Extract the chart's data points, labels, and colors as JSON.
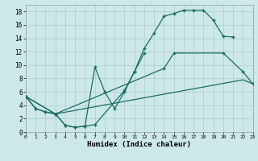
{
  "xlabel": "Humidex (Indice chaleur)",
  "bg_color": "#cde8e8",
  "grid_color": "#aecccc",
  "line_color": "#1a6e64",
  "xlim": [
    0,
    23
  ],
  "ylim": [
    0,
    19
  ],
  "xticks": [
    0,
    1,
    2,
    3,
    4,
    5,
    6,
    7,
    8,
    9,
    10,
    11,
    12,
    13,
    14,
    15,
    16,
    17,
    18,
    19,
    20,
    21,
    22,
    23
  ],
  "yticks": [
    0,
    2,
    4,
    6,
    8,
    10,
    12,
    14,
    16,
    18
  ],
  "curve1_x": [
    0,
    1,
    2,
    3,
    4,
    5,
    6,
    7,
    10,
    11,
    12,
    13,
    14,
    15,
    16,
    17,
    18,
    19,
    20,
    21
  ],
  "curve1_y": [
    5.3,
    3.5,
    3.0,
    2.7,
    1.0,
    0.7,
    0.9,
    1.1,
    6.2,
    9.0,
    12.5,
    14.8,
    17.3,
    17.7,
    18.2,
    18.2,
    18.2,
    16.7,
    14.3,
    14.2
  ],
  "curve2_x": [
    0,
    1,
    2,
    3,
    4,
    5,
    6,
    7,
    8,
    9,
    10,
    11,
    12
  ],
  "curve2_y": [
    5.3,
    3.5,
    3.0,
    2.7,
    1.0,
    0.7,
    0.9,
    9.7,
    6.0,
    3.5,
    6.0,
    9.0,
    11.8
  ],
  "curve3_x": [
    0,
    3,
    14,
    15,
    20,
    22,
    23
  ],
  "curve3_y": [
    5.3,
    2.7,
    9.5,
    11.8,
    11.8,
    9.0,
    7.2
  ],
  "curve4_x": [
    0,
    3,
    22,
    23
  ],
  "curve4_y": [
    5.3,
    2.7,
    7.8,
    7.2
  ]
}
